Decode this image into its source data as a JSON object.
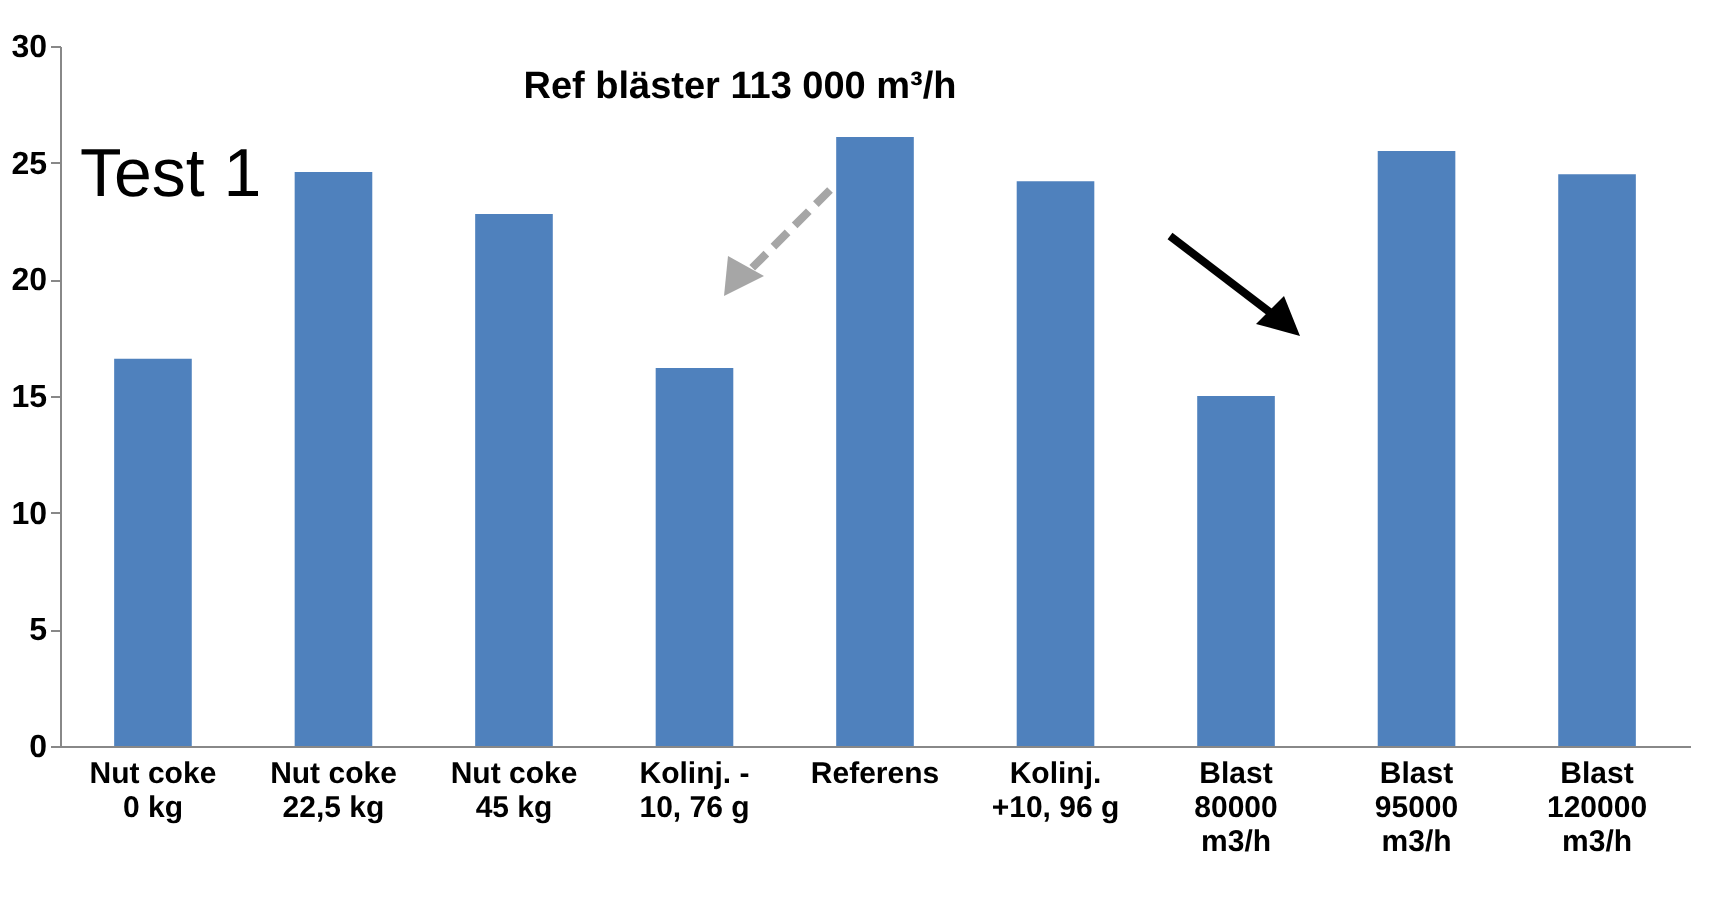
{
  "chart_data": {
    "type": "bar",
    "title": "Test 1",
    "annotations": [
      "Ref bläster 113 000 m³/h"
    ],
    "categories": [
      "Nut coke\n0 kg",
      "Nut coke\n22,5 kg",
      "Nut coke\n45 kg",
      "Kolinj. -\n10,  76 g",
      "Referens",
      "Kolinj.\n+10, 96 g",
      "Blast\n80000\nm3/h",
      "Blast\n95000\nm3/h",
      "Blast\n120000\nm3/h"
    ],
    "values": [
      16.6,
      24.6,
      22.8,
      16.2,
      26.1,
      24.2,
      15.0,
      25.5,
      24.5
    ],
    "color": "#4f81bd",
    "ylim": [
      0,
      30
    ],
    "yticks": [
      0,
      5,
      10,
      15,
      20,
      25,
      30
    ],
    "grid": false
  }
}
